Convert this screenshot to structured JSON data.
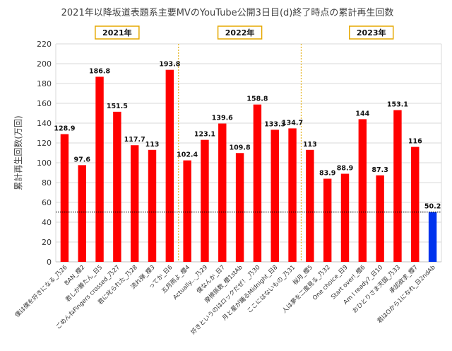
{
  "chart_data": {
    "type": "bar",
    "title": "2021年以降坂道表題系主要MVのYouTube公開3日目(d)終了時点の累計再生回数",
    "xlabel": "",
    "ylabel": "累計再生回数(万回)",
    "ylim": [
      0,
      220
    ],
    "yticks": [
      0,
      20,
      40,
      60,
      80,
      100,
      120,
      140,
      160,
      180,
      200,
      220
    ],
    "grid": true,
    "legend": "none",
    "categories": [
      "僕は僕を好きになる_乃26",
      "BAN_櫻2",
      "君しか勝たん_日5",
      "ごめんねFingers crossed_乃27",
      "君に叱られた_乃28",
      "流れ弾_櫻3",
      "ってか_日6",
      "五月雨よ_櫻4",
      "Actually..._乃29",
      "僕なんか_日7",
      "摩擦係数_櫻1stAb",
      "好きというのはロックだぜ！_乃30",
      "月と星が踊るMidnight_日8",
      "ここにはないもの_乃31",
      "桜月_櫻5",
      "人は夢を二度見る_乃32",
      "One choice_日9",
      "Start over!_櫻6",
      "Am I ready?_日10",
      "おひとりさま天国_乃33",
      "承認欲求_櫻7",
      "君はOから1になれ_日2ndAb"
    ],
    "values": [
      128.9,
      97.6,
      186.8,
      151.5,
      117.7,
      113,
      193.8,
      102.4,
      123.1,
      139.6,
      109.8,
      158.8,
      133.3,
      134.7,
      113,
      83.9,
      88.9,
      144,
      87.3,
      153.1,
      116,
      50.2
    ],
    "data_labels": [
      "128.9",
      "97.6",
      "186.8",
      "151.5",
      "117.7",
      "113",
      "193.8",
      "102.4",
      "123.1",
      "139.6",
      "109.8",
      "158.8",
      "133.3",
      "134.7",
      "113",
      "83.9",
      "88.9",
      "144",
      "87.3",
      "153.1",
      "116",
      "50.2"
    ],
    "highlight_index": 21,
    "reference_line": 50.2,
    "year_groups": [
      {
        "label": "2021年",
        "start": 0,
        "end": 6
      },
      {
        "label": "2022年",
        "start": 7,
        "end": 13
      },
      {
        "label": "2023年",
        "start": 14,
        "end": 21
      }
    ],
    "colors": {
      "bar": "#ff0000",
      "highlight": "#0033ee",
      "grid": "#d9d9d9",
      "separator": "#e6b422",
      "year_box_border": "#e6a800",
      "reference_line": "#000000"
    }
  }
}
